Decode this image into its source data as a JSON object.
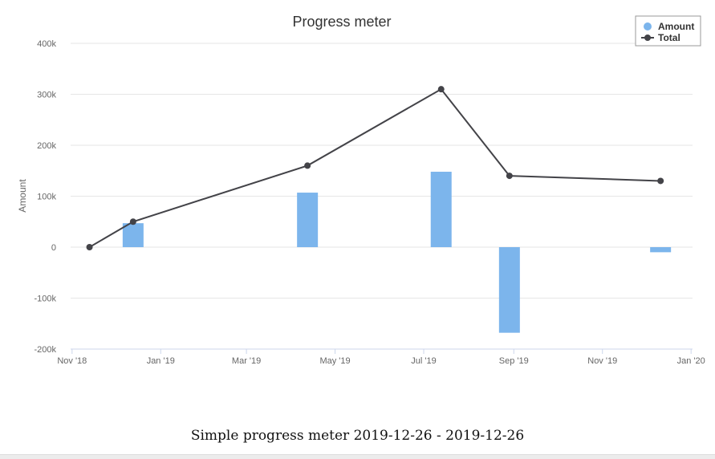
{
  "chart_data": {
    "type": "bar",
    "title": "Progress meter",
    "ylabel": "Amount",
    "ylim": [
      -200000,
      400000
    ],
    "yticks": [
      {
        "value": 400000,
        "label": "400k"
      },
      {
        "value": 300000,
        "label": "300k"
      },
      {
        "value": 200000,
        "label": "200k"
      },
      {
        "value": 100000,
        "label": "100k"
      },
      {
        "value": 0,
        "label": "0"
      },
      {
        "value": -100000,
        "label": "-100k"
      },
      {
        "value": -200000,
        "label": "-200k"
      }
    ],
    "xlim": [
      "2018-10-31",
      "2020-01-02"
    ],
    "xticks": [
      {
        "date": "2018-11-01",
        "label": "Nov '18"
      },
      {
        "date": "2019-01-01",
        "label": "Jan '19"
      },
      {
        "date": "2019-03-01",
        "label": "Mar '19"
      },
      {
        "date": "2019-05-01",
        "label": "May '19"
      },
      {
        "date": "2019-07-01",
        "label": "Jul '19"
      },
      {
        "date": "2019-09-01",
        "label": "Sep '19"
      },
      {
        "date": "2019-11-01",
        "label": "Nov '19"
      },
      {
        "date": "2020-01-01",
        "label": "Jan '20"
      }
    ],
    "grid": true,
    "legend_position": "top-right",
    "series": [
      {
        "name": "Amount",
        "kind": "bar",
        "color": "#7cb5ec",
        "points": [
          {
            "x": "2018-12-13",
            "y": 47000
          },
          {
            "x": "2019-04-12",
            "y": 107000
          },
          {
            "x": "2019-07-13",
            "y": 148000
          },
          {
            "x": "2019-08-29",
            "y": -168000
          },
          {
            "x": "2019-12-11",
            "y": -10000
          }
        ]
      },
      {
        "name": "Total",
        "kind": "line",
        "color": "#434348",
        "points": [
          {
            "x": "2018-11-13",
            "y": 0
          },
          {
            "x": "2018-12-13",
            "y": 50000
          },
          {
            "x": "2019-04-12",
            "y": 160000
          },
          {
            "x": "2019-07-13",
            "y": 310000
          },
          {
            "x": "2019-08-29",
            "y": 140000
          },
          {
            "x": "2019-12-11",
            "y": 130000
          }
        ]
      }
    ]
  },
  "caption": "Simple progress meter 2019-12-26 - 2019-12-26"
}
